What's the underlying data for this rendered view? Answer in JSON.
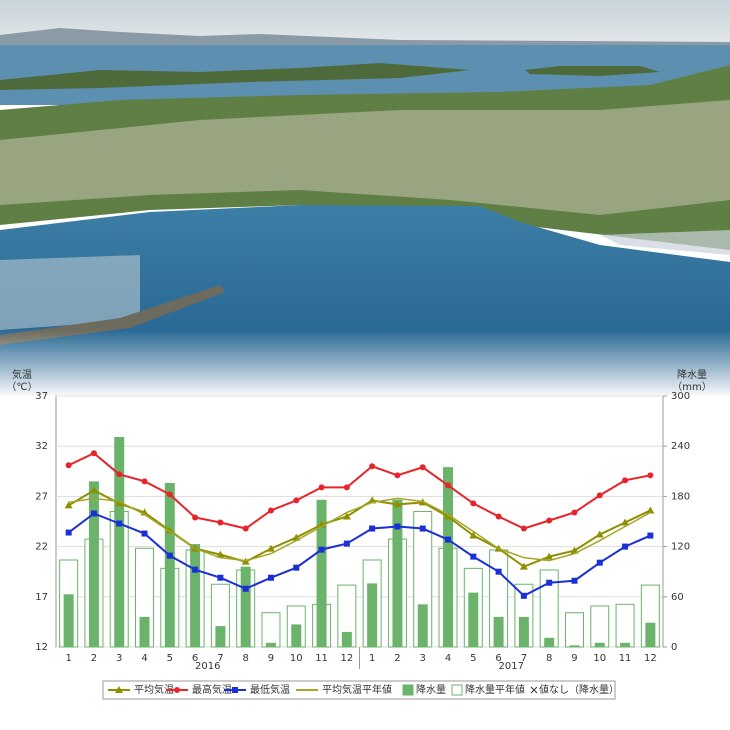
{
  "chart_data": {
    "type": "combo",
    "y_axis_label": [
      "気温",
      "（℃）"
    ],
    "y2_axis_label": [
      "降水量",
      "（mm）"
    ],
    "categories": [
      "1",
      "2",
      "3",
      "4",
      "5",
      "6",
      "7",
      "8",
      "9",
      "10",
      "11",
      "12",
      "1",
      "2",
      "3",
      "4",
      "5",
      "6",
      "7",
      "8",
      "9",
      "10",
      "11",
      "12"
    ],
    "year_labels": [
      "2016",
      "2017"
    ],
    "ylim": [
      12,
      37
    ],
    "yticks": [
      12,
      17,
      22,
      27,
      32,
      37
    ],
    "y2lim": [
      0,
      300
    ],
    "y2ticks": [
      0,
      60,
      120,
      180,
      240,
      300
    ],
    "grid": true,
    "series": [
      {
        "name": "平均気温",
        "kind": "line",
        "marker": "triangle",
        "color": "#8f8f00",
        "values": [
          26.1,
          27.6,
          26.3,
          25.4,
          23.6,
          21.8,
          21.2,
          20.5,
          21.8,
          22.9,
          24.2,
          25.0,
          26.6,
          26.2,
          26.4,
          25.0,
          23.1,
          21.8,
          20.0,
          21.0,
          21.6,
          23.2,
          24.4,
          25.6
        ]
      },
      {
        "name": "最高気温",
        "kind": "line",
        "marker": "circle",
        "color": "#e8242a",
        "values": [
          30.1,
          31.3,
          29.2,
          28.5,
          27.2,
          24.9,
          24.4,
          23.8,
          25.6,
          26.6,
          27.9,
          27.9,
          30.0,
          29.1,
          29.9,
          28.1,
          26.3,
          25.0,
          23.8,
          24.6,
          25.4,
          27.1,
          28.6,
          29.1
        ]
      },
      {
        "name": "最低気温",
        "kind": "line",
        "marker": "square",
        "color": "#1a2fd6",
        "values": [
          23.4,
          25.3,
          24.3,
          23.3,
          21.1,
          19.7,
          18.9,
          17.8,
          18.9,
          19.9,
          21.7,
          22.3,
          23.8,
          24.0,
          23.8,
          22.7,
          21.0,
          19.5,
          17.1,
          18.4,
          18.6,
          20.4,
          22.0,
          23.1
        ]
      },
      {
        "name": "平均気温平年値",
        "kind": "line",
        "marker": "none",
        "color": "#a5a52a",
        "values": [
          26.4,
          26.8,
          26.5,
          25.2,
          23.5,
          21.8,
          20.9,
          20.6,
          21.3,
          22.6,
          24.0,
          25.4,
          26.4,
          26.8,
          26.5,
          25.2,
          23.5,
          21.8,
          20.9,
          20.6,
          21.3,
          22.6,
          24.0,
          25.4
        ]
      },
      {
        "name": "降水量",
        "kind": "bar",
        "axis": "y2",
        "color": "#6bb36b",
        "values": [
          63,
          198,
          251,
          36,
          196,
          123,
          25,
          96,
          5,
          27,
          176,
          18,
          76,
          176,
          51,
          215,
          65,
          36,
          36,
          11,
          2,
          5,
          5,
          29
        ]
      },
      {
        "name": "降水量平年値",
        "kind": "outline-bar",
        "axis": "y2",
        "color": "#6bb36b",
        "values": [
          104,
          129,
          162,
          118,
          94,
          116,
          75,
          92,
          41,
          49,
          51,
          74,
          104,
          129,
          162,
          118,
          94,
          116,
          75,
          92,
          41,
          49,
          51,
          74
        ]
      }
    ],
    "no_value_label": "値なし（降水量）"
  }
}
